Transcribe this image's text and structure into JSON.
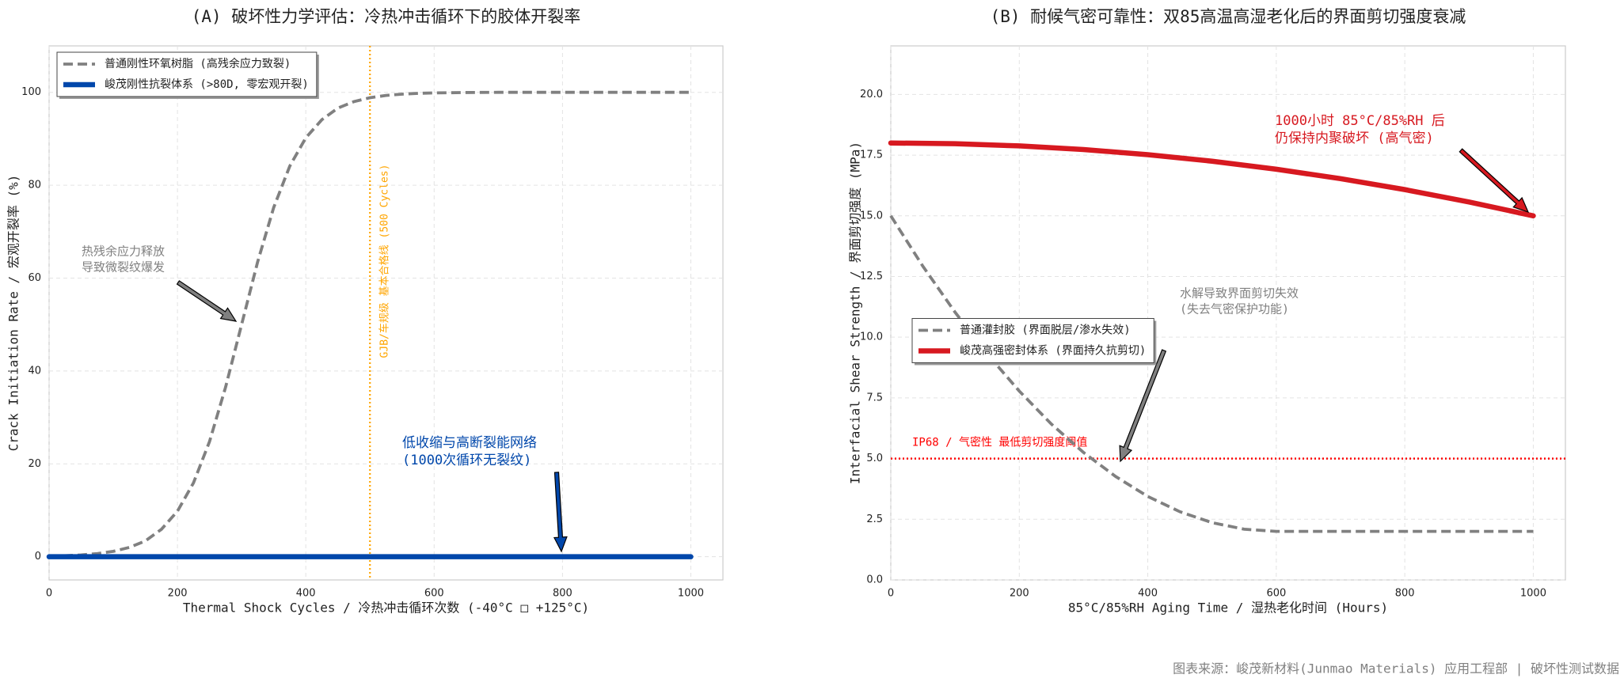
{
  "chart_data": [
    {
      "type": "line",
      "title": "(A) 破坏性力学评估：冷热冲击循环下的胶体开裂率",
      "xlabel": "Thermal Shock Cycles / 冷热冲击循环次数 (-40°C □ +125°C)",
      "ylabel": "Crack Initiation Rate / 宏观开裂率 (%)",
      "xlim": [
        0,
        1050
      ],
      "ylim": [
        -5,
        110
      ],
      "xticks": [
        0,
        200,
        400,
        600,
        800,
        1000
      ],
      "yticks": [
        0,
        20,
        40,
        60,
        80,
        100
      ],
      "grid": true,
      "legend": "upper left",
      "series": [
        {
          "name": "普通刚性环氧树脂 (高残余应力致裂)",
          "color": "#808080",
          "linestyle": "dashed",
          "x": [
            0,
            25,
            50,
            75,
            100,
            125,
            150,
            175,
            200,
            225,
            250,
            275,
            300,
            325,
            350,
            375,
            400,
            425,
            450,
            475,
            500,
            525,
            550,
            575,
            600,
            650,
            700,
            800,
            900,
            1000
          ],
          "values": [
            0.13,
            0.22,
            0.39,
            0.67,
            1.16,
            2.0,
            3.4,
            5.9,
            9.8,
            15.9,
            24.8,
            36.5,
            50,
            63.5,
            75.2,
            84.1,
            90.2,
            94.1,
            96.6,
            98.0,
            98.84,
            99.33,
            99.61,
            99.78,
            99.87,
            99.96,
            100,
            100,
            100,
            100
          ]
        },
        {
          "name": "峻茂刚性抗裂体系 (>80D, 零宏观开裂)",
          "color": "#0047AB",
          "linestyle": "solid",
          "x": [
            0,
            1000
          ],
          "values": [
            0,
            0
          ]
        }
      ],
      "vline": {
        "value": 500,
        "label": "GJB/车规级 基本合格线 (500 Cycles)",
        "color": "#FFA500"
      },
      "annotations": [
        {
          "text": [
            "热残余应力释放",
            "导致微裂纹爆发"
          ],
          "color": "#808080"
        },
        {
          "text": [
            "低收缩与高断裂能网络",
            "(1000次循环无裂纹)"
          ],
          "color": "#0047AB"
        }
      ]
    },
    {
      "type": "line",
      "title": "(B) 耐候气密可靠性：双85高温高湿老化后的界面剪切强度衰减",
      "xlabel": "85°C/85%RH Aging Time / 湿热老化时间 (Hours)",
      "ylabel": "Interfacial Shear Strength / 界面剪切强度 (MPa)",
      "xlim": [
        0,
        1050
      ],
      "ylim": [
        0,
        22
      ],
      "xticks": [
        0,
        200,
        400,
        600,
        800,
        1000
      ],
      "yticks": [
        {
          "value": 0,
          "label": "0.0"
        },
        2.5,
        {
          "value": 5,
          "label": "5.0"
        },
        7.5,
        {
          "value": 10,
          "label": "10.0"
        },
        12.5,
        {
          "value": 15,
          "label": "15.0"
        },
        17.5,
        {
          "value": 20,
          "label": "20.0"
        }
      ],
      "grid": true,
      "legend": "center left",
      "series": [
        {
          "name": "普通灌封胶 (界面脱层/渗水失效)",
          "color": "#808080",
          "linestyle": "dashed",
          "x": [
            0,
            50,
            100,
            150,
            200,
            250,
            300,
            350,
            400,
            450,
            500,
            550,
            600,
            1000
          ],
          "values": [
            15,
            12.92,
            11.03,
            9.31,
            7.78,
            6.42,
            5.25,
            4.26,
            3.44,
            2.81,
            2.36,
            2.09,
            2,
            2
          ]
        },
        {
          "name": "峻茂高强密封体系 (界面持久抗剪切)",
          "color": "#D71920",
          "linestyle": "solid",
          "x": [
            0,
            100,
            200,
            300,
            400,
            500,
            600,
            700,
            800,
            900,
            1000
          ],
          "values": [
            18,
            17.97,
            17.88,
            17.73,
            17.52,
            17.25,
            16.92,
            16.53,
            16.08,
            15.57,
            15.0
          ]
        }
      ],
      "hline": {
        "value": 5,
        "label": "IP68 / 气密性 最低剪切强度阈值",
        "color": "#FF0000"
      },
      "annotations": [
        {
          "text": [
            "1000小时 85°C/85%RH 后",
            "仍保持内聚破坏 (高气密)"
          ],
          "color": "#D71920"
        },
        {
          "text": [
            "水解导致界面剪切失效",
            "(失去气密保护功能)"
          ],
          "color": "#808080"
        }
      ]
    }
  ],
  "source": "图表来源：峻茂新材料(Junmao Materials) 应用工程部 | 破坏性测试数据"
}
